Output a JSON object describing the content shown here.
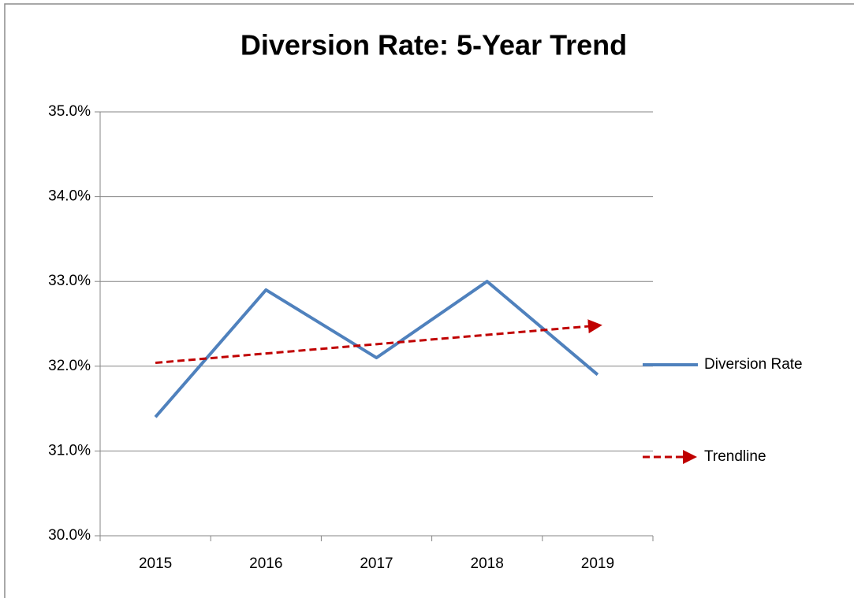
{
  "chart_data": {
    "type": "line",
    "title": "Diversion Rate: 5-Year Trend",
    "categories": [
      "2015",
      "2016",
      "2017",
      "2018",
      "2019"
    ],
    "series": [
      {
        "name": "Diversion Rate",
        "color": "#4f81bd",
        "values": [
          31.4,
          32.9,
          32.1,
          33.0,
          31.9
        ]
      },
      {
        "name": "Trendline",
        "color": "#c00000",
        "dashed": true,
        "arrow": true,
        "values": [
          32.04,
          32.15,
          32.26,
          32.37,
          32.48
        ]
      }
    ],
    "ylim": [
      30,
      35
    ],
    "yticks": [
      {
        "value": 30,
        "label": "30.0%"
      },
      {
        "value": 31,
        "label": "31.0%"
      },
      {
        "value": 32,
        "label": "32.0%"
      },
      {
        "value": 33,
        "label": "33.0%"
      },
      {
        "value": 34,
        "label": "34.0%"
      },
      {
        "value": 35,
        "label": "35.0%"
      }
    ],
    "grid": true,
    "legend": "right"
  }
}
